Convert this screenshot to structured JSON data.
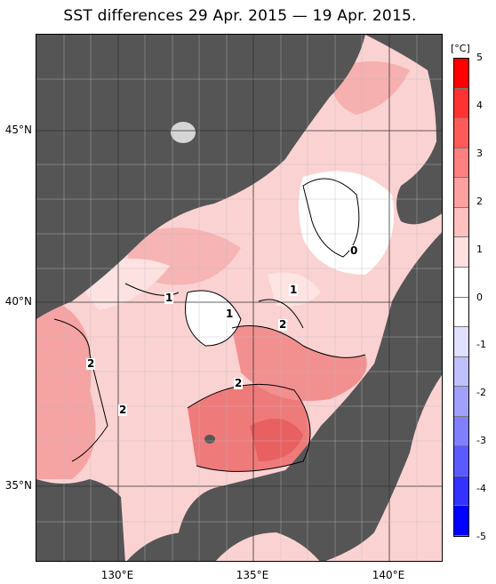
{
  "title": "SST differences 29 Apr. 2015 — 19 Apr. 2015.",
  "map": {
    "lat_labels": [
      "45°N",
      "40°N",
      "35°N"
    ],
    "lon_labels": [
      "130°E",
      "135°E",
      "140°E"
    ],
    "contour_labels": [
      "1",
      "1",
      "1",
      "0",
      "2",
      "2",
      "2",
      "2"
    ]
  },
  "colorbar": {
    "unit": "[°C]",
    "ticks": [
      "5",
      "4",
      "3",
      "2",
      "1",
      "0",
      "-1",
      "-2",
      "-3",
      "-4",
      "-5"
    ],
    "colors": [
      "#ff0000",
      "#ff3333",
      "#ff5a5a",
      "#ff8080",
      "#ffa0a0",
      "#ffc0c0",
      "#ffe0e0",
      "#ffffff",
      "#ffffff",
      "#e0e0ff",
      "#c0c0ff",
      "#a0a0ff",
      "#8080ff",
      "#5a5aff",
      "#3333ff",
      "#0000ff"
    ]
  },
  "colors": {
    "land": "#555555",
    "frame": "#000000"
  }
}
